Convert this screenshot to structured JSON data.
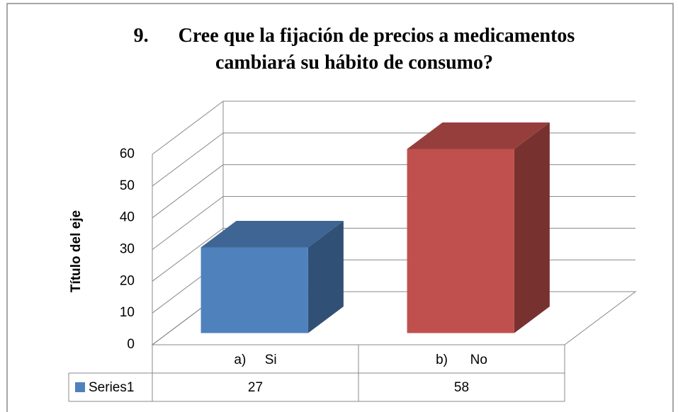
{
  "chart_data": {
    "type": "bar3d",
    "title": "9.      Cree que la fijación de precios a medicamentos cambiará su hábito de consumo?",
    "y_label": "Título del eje",
    "categories": [
      "a)     Si",
      "b)      No"
    ],
    "series": [
      {
        "name": "Series1",
        "color": "#4f81bd",
        "values": [
          27,
          58
        ],
        "colors": [
          "#4f81bd",
          "#c0504d"
        ]
      }
    ],
    "ylim": [
      0,
      60
    ],
    "yticks": [
      0,
      10,
      20,
      30,
      40,
      50,
      60
    ],
    "grid": true,
    "legend": "data-table"
  }
}
